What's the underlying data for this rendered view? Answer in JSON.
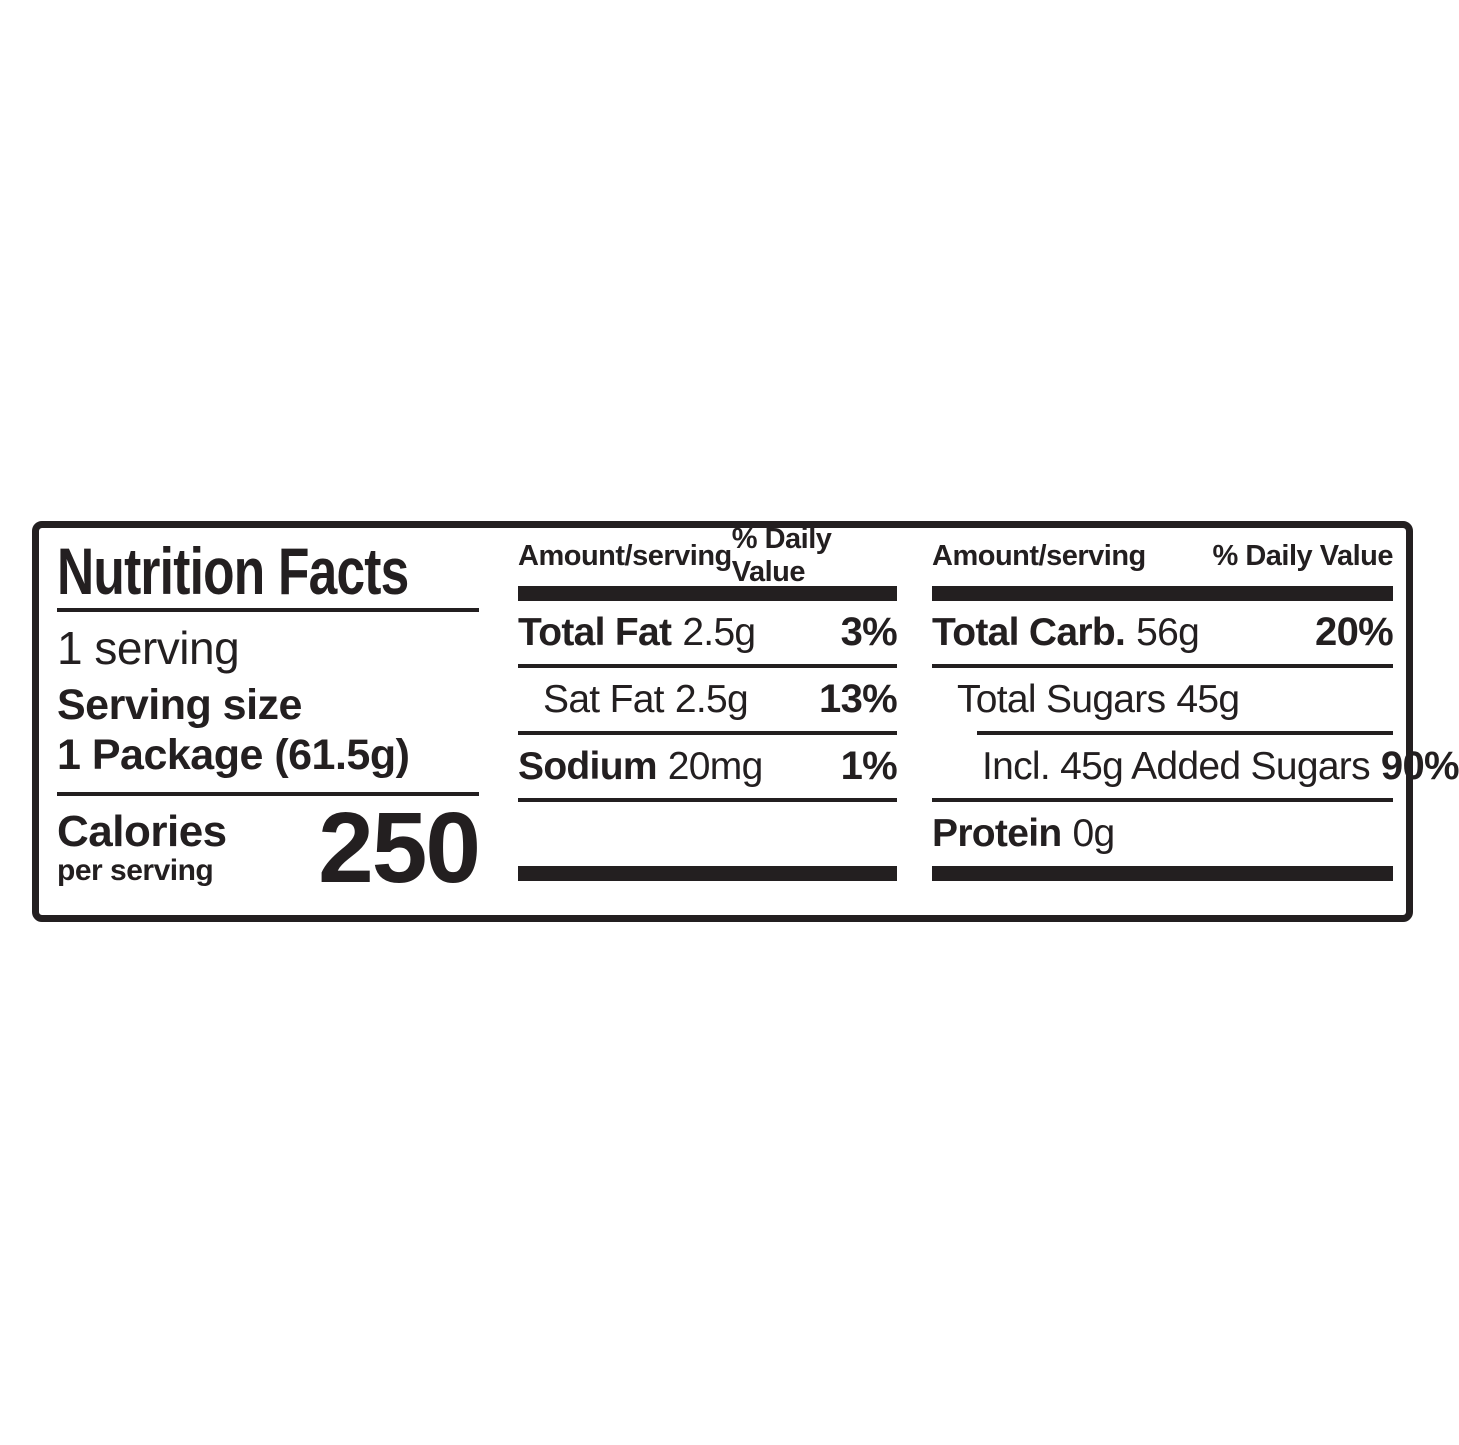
{
  "label": {
    "title": "Nutrition Facts",
    "servings_per_container": "1 serving",
    "serving_size_label": "Serving size",
    "serving_size_value": "1 Package (61.5g)",
    "calories_label": "Calories",
    "calories_sublabel": "per serving",
    "calories_value": "250",
    "columns": [
      {
        "header_amount": "Amount/serving",
        "header_dv": "% Daily Value",
        "rows": [
          {
            "name": "Total Fat",
            "amount": "2.5g",
            "dv": "3%"
          },
          {
            "name": "Sat Fat",
            "amount": "2.5g",
            "dv": "13%"
          },
          {
            "name": "Sodium",
            "amount": "20mg",
            "dv": "1%"
          }
        ]
      },
      {
        "header_amount": "Amount/serving",
        "header_dv": "% Daily Value",
        "rows": [
          {
            "name": "Total Carb.",
            "amount": "56g",
            "dv": "20%"
          },
          {
            "name": "Total Sugars",
            "amount": "45g",
            "dv": ""
          },
          {
            "name": "Incl. 45g Added Sugars",
            "amount": "",
            "dv": "90%"
          },
          {
            "name": "Protein",
            "amount": "0g",
            "dv": ""
          }
        ]
      }
    ]
  },
  "colors": {
    "ink": "#231f20",
    "background": "#ffffff"
  }
}
